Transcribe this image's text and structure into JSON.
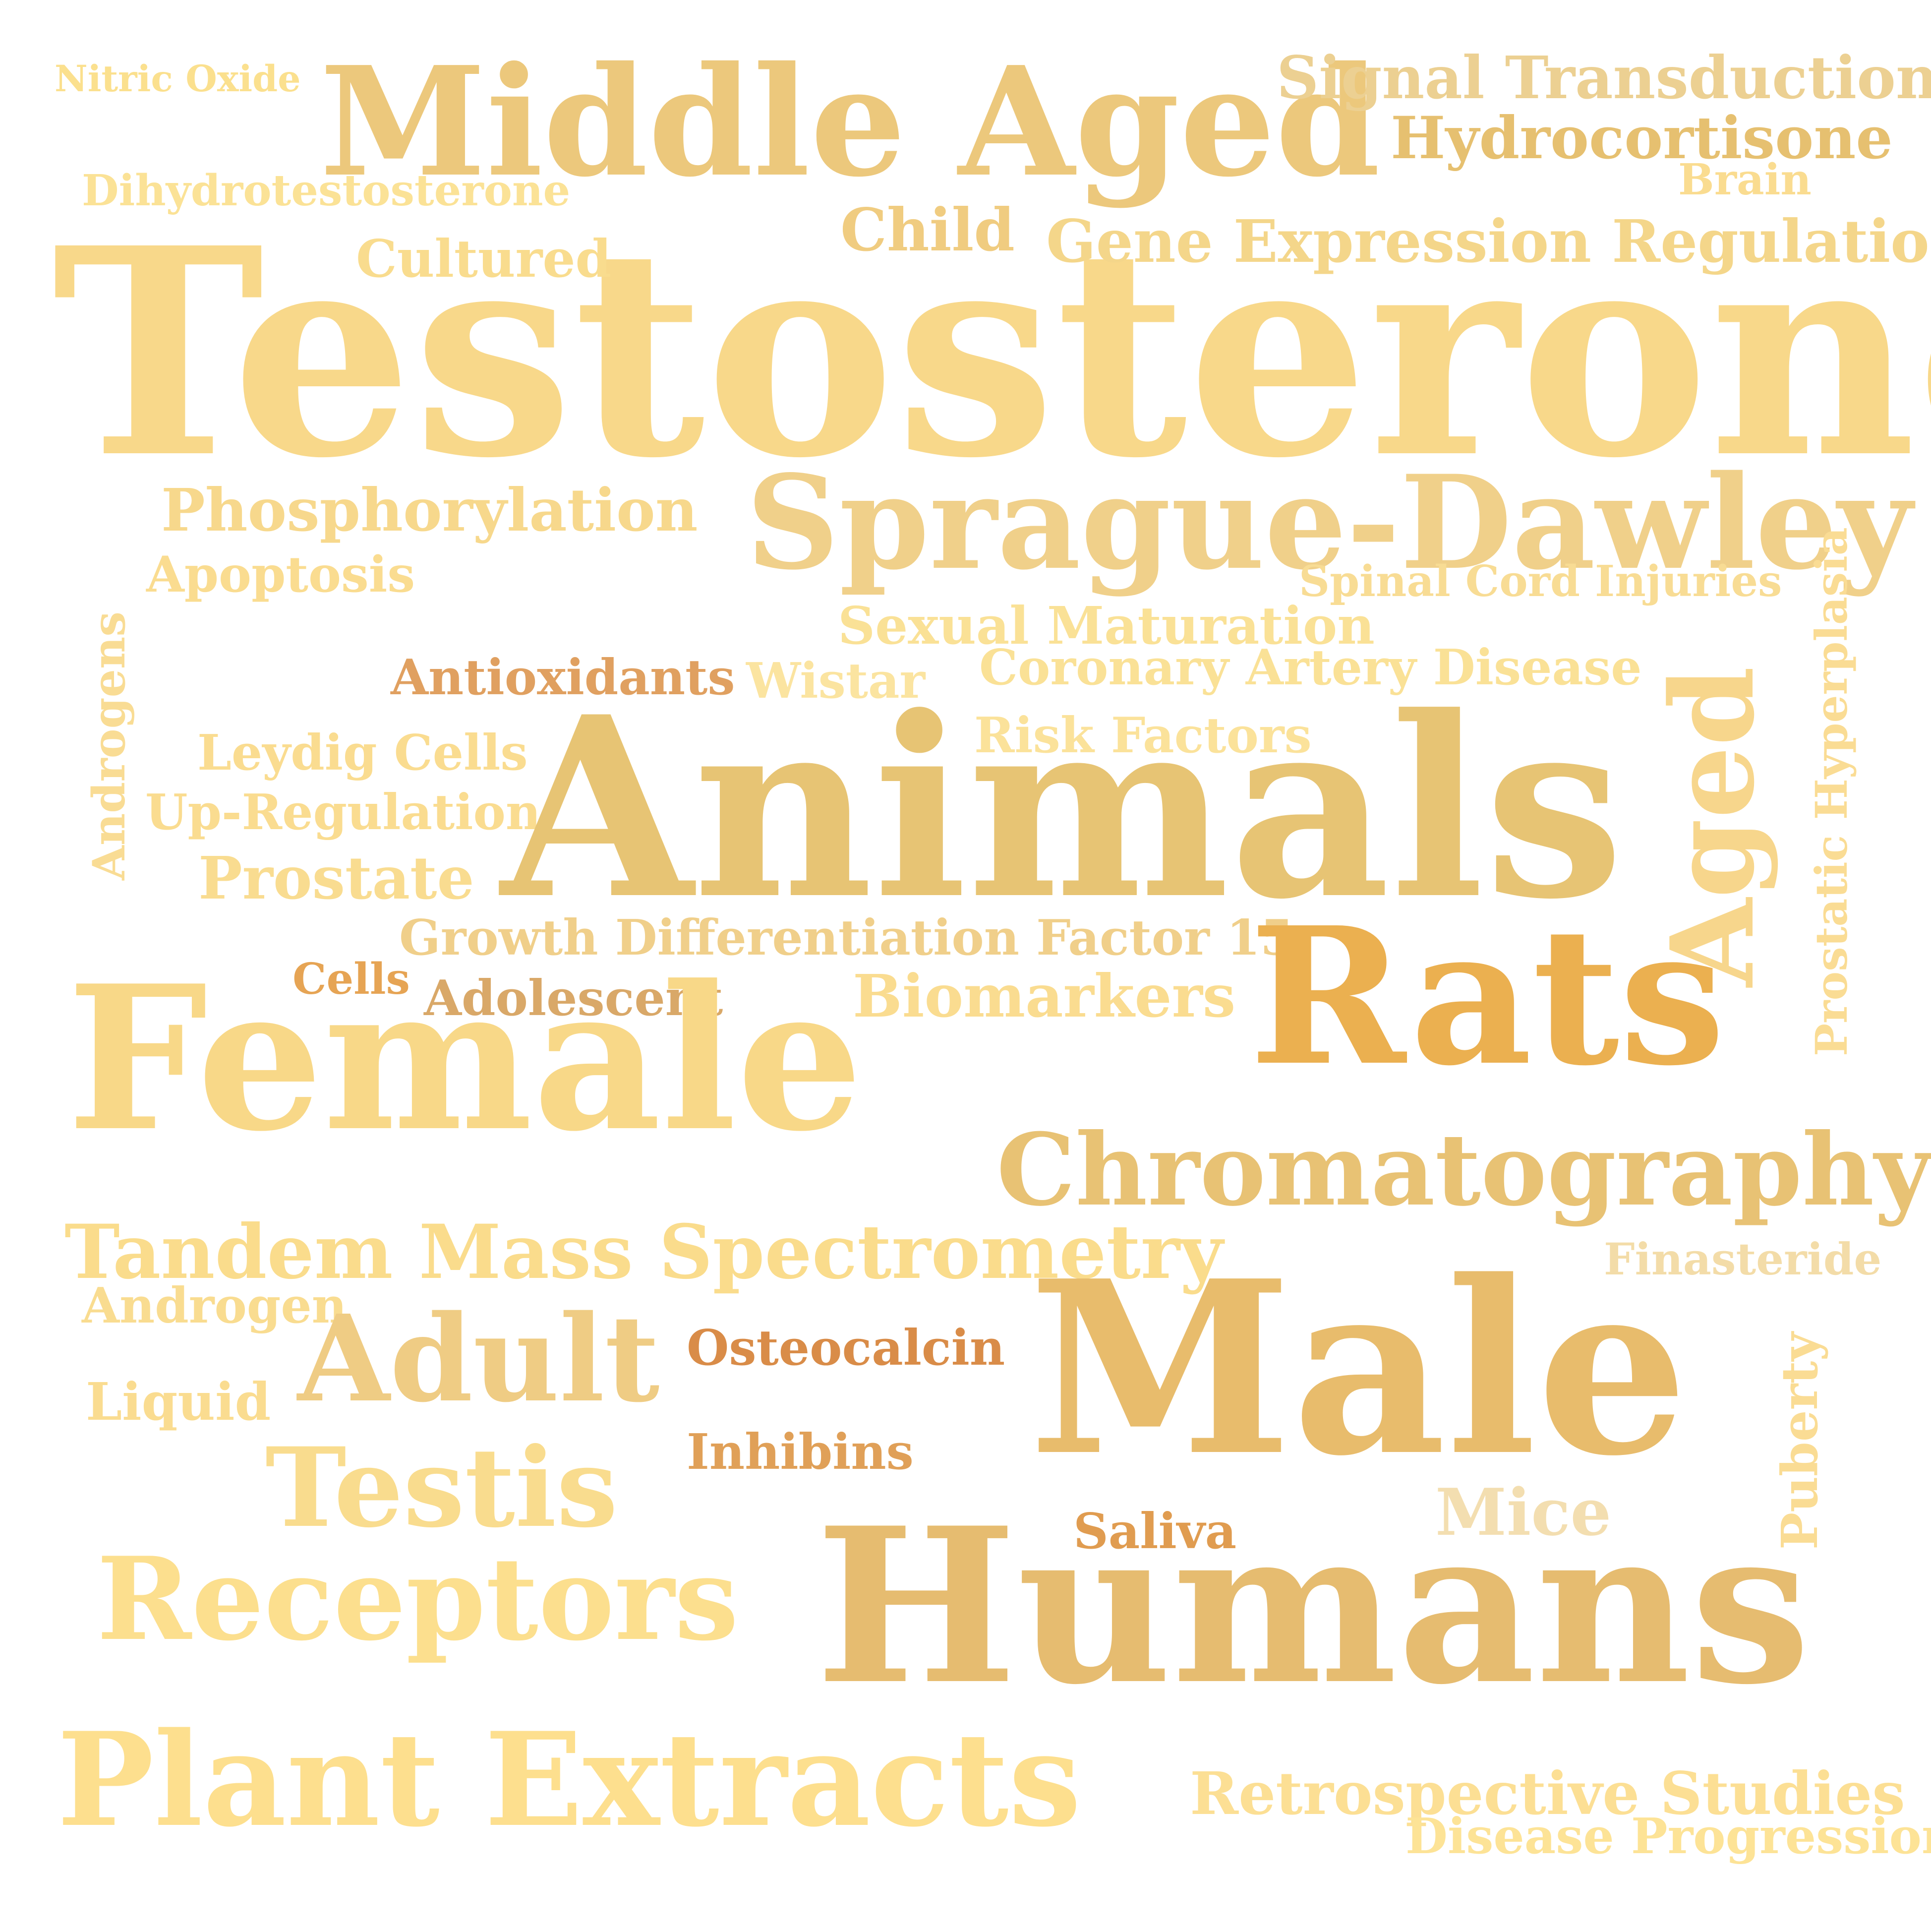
{
  "word_cloud": {
    "words": {
      "testosterone": {
        "text": "Testosterone",
        "color": "#f8d88a"
      },
      "middle_aged": {
        "text": "Middle Aged",
        "color": "#ecc87c"
      },
      "nitric_oxide": {
        "text": "Nitric Oxide",
        "color": "#fbe08e"
      },
      "signal_transduction": {
        "text": "Signal Transduction",
        "color": "#ecd092"
      },
      "hydrocortisone": {
        "text": "Hydrocortisone",
        "color": "#e6c070"
      },
      "dihydrotestosterone": {
        "text": "Dihydrotestosterone",
        "color": "#fbe296"
      },
      "brain": {
        "text": "Brain",
        "color": "#fadc90"
      },
      "child": {
        "text": "Child",
        "color": "#f0cc80"
      },
      "gene_expression_regulation": {
        "text": "Gene Expression Regulation",
        "color": "#f4d68a"
      },
      "cultured": {
        "text": "Cultured",
        "color": "#f9dc8e"
      },
      "phosphorylation": {
        "text": "Phosphorylation",
        "color": "#f7d88c"
      },
      "sprague_dawley": {
        "text": "Sprague-Dawley",
        "color": "#f0d08a"
      },
      "apoptosis": {
        "text": "Apoptosis",
        "color": "#fadc90"
      },
      "spinal_cord_injuries": {
        "text": "Spinal Cord Injuries",
        "color": "#f8dc94"
      },
      "sexual_maturation": {
        "text": "Sexual Maturation",
        "color": "#fae196"
      },
      "antioxidants": {
        "text": "Antioxidants",
        "color": "#e0a060"
      },
      "wistar": {
        "text": "Wistar",
        "color": "#fbe4a0"
      },
      "coronary_artery_disease": {
        "text": "Coronary Artery Disease",
        "color": "#fae196"
      },
      "risk_factors": {
        "text": "Risk Factors",
        "color": "#fbe29a"
      },
      "leydig_cells": {
        "text": "Leydig Cells",
        "color": "#fadc90"
      },
      "up_regulation": {
        "text": "Up-Regulation",
        "color": "#fadc90"
      },
      "androgens": {
        "text": "Androgens",
        "color": "#f9dc94"
      },
      "animals": {
        "text": "Animals",
        "color": "#e7c474"
      },
      "prostate": {
        "text": "Prostate",
        "color": "#f9dc90"
      },
      "growth_differentiation_factor_15": {
        "text": "Growth Differentiation Factor 15",
        "color": "#f0cf8a"
      },
      "cells": {
        "text": "Cells",
        "color": "#e6a454"
      },
      "adolescent": {
        "text": "Adolescent",
        "color": "#d9a868"
      },
      "biomarkers": {
        "text": "Biomarkers",
        "color": "#fadc90"
      },
      "aged": {
        "text": "Aged",
        "color": "#f7d68c"
      },
      "prostatic_hyperplasia": {
        "text": "Prostatic Hyperplasia",
        "color": "#fadc94"
      },
      "rats": {
        "text": "Rats",
        "color": "#ebb050"
      },
      "female": {
        "text": "Female",
        "color": "#f8d888"
      },
      "chromatography": {
        "text": "Chromatography",
        "color": "#e8c274"
      },
      "tandem_mass_spectrometry": {
        "text": "Tandem Mass Spectrometry",
        "color": "#fadc8c"
      },
      "finasteride": {
        "text": "Finasteride",
        "color": "#f3dca8"
      },
      "androgen": {
        "text": "Androgen",
        "color": "#f9dc90"
      },
      "male": {
        "text": "Male",
        "color": "#e8bc6c"
      },
      "osteocalcin": {
        "text": "Osteocalcin",
        "color": "#d98c48"
      },
      "adult": {
        "text": "Adult",
        "color": "#efcc84"
      },
      "liquid": {
        "text": "Liquid",
        "color": "#fadc90"
      },
      "inhibins": {
        "text": "Inhibins",
        "color": "#e0a058"
      },
      "testis": {
        "text": "Testis",
        "color": "#f9dc8e"
      },
      "mice": {
        "text": "Mice",
        "color": "#f3deb0"
      },
      "puberty": {
        "text": "Puberty",
        "color": "#fadc94"
      },
      "saliva": {
        "text": "Saliva",
        "color": "#e09c50"
      },
      "humans": {
        "text": "Humans",
        "color": "#e6bc70"
      },
      "receptors": {
        "text": "Receptors",
        "color": "#fcdf8e"
      },
      "plant_extracts": {
        "text": "Plant Extracts",
        "color": "#fddf8e"
      },
      "retrospective_studies": {
        "text": "Retrospective Studies",
        "color": "#fcdf94"
      },
      "disease_progression": {
        "text": "Disease Progression",
        "color": "#fde396"
      }
    }
  }
}
